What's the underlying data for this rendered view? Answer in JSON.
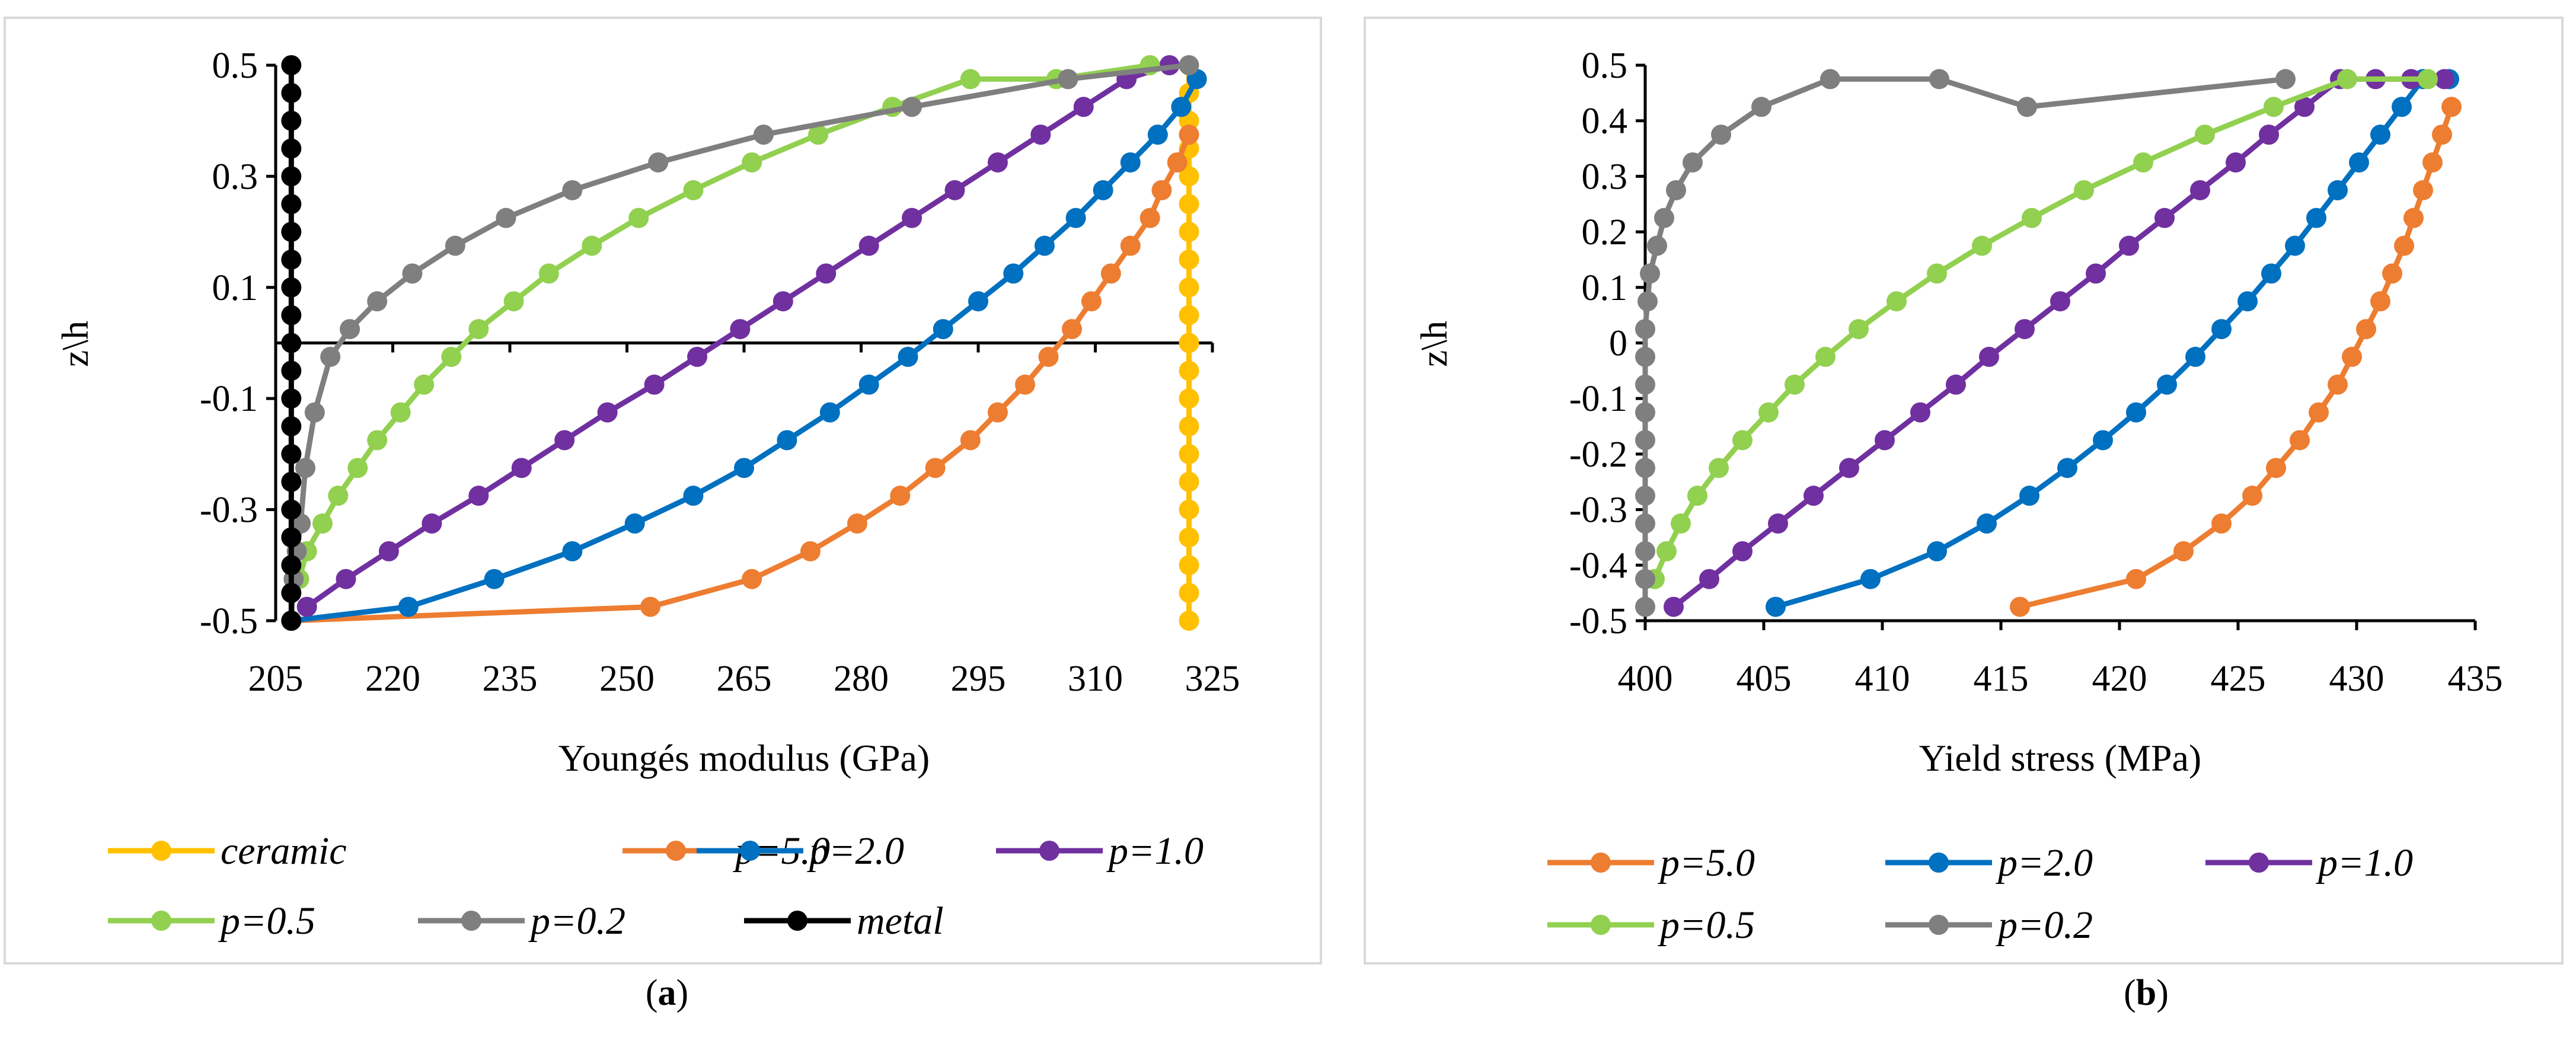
{
  "chart_data": [
    {
      "id": "a",
      "type": "line",
      "caption_label": "a",
      "xlabel": "Youngés modulus (GPa)",
      "ylabel": "z\\h",
      "xlim": [
        205,
        325
      ],
      "ylim": [
        -0.5,
        0.5
      ],
      "x_ticks": [
        205,
        220,
        235,
        250,
        265,
        280,
        295,
        310,
        325
      ],
      "y_ticks": [
        -0.5,
        -0.3,
        -0.1,
        0.1,
        0.3,
        0.5
      ],
      "y_tick_labels": [
        "-0.5",
        "-0.3",
        "-0.1",
        "0.1",
        "0.3",
        "0.5"
      ],
      "x_axis_crosses_y": 0,
      "legend": "bottom",
      "series": [
        {
          "name": "ceramic",
          "color": "#FFC000",
          "x": [
            322,
            322,
            322,
            322,
            322,
            322,
            322,
            322,
            322,
            322,
            322,
            322,
            322,
            322,
            322,
            322,
            322,
            322,
            322,
            322,
            322
          ],
          "y": [
            -0.5,
            -0.45,
            -0.4,
            -0.35,
            -0.3,
            -0.25,
            -0.2,
            -0.15,
            -0.1,
            -0.05,
            0,
            0.05,
            0.1,
            0.15,
            0.2,
            0.25,
            0.3,
            0.35,
            0.4,
            0.45,
            0.5
          ]
        },
        {
          "name": "p=5.0",
          "color": "#ED7D31",
          "x": [
            207,
            253,
            266,
            273.5,
            279.5,
            285,
            289.5,
            294,
            297.5,
            301,
            304,
            307,
            309.5,
            312,
            314.5,
            317,
            318.5,
            320.5,
            322
          ],
          "y": [
            -0.5,
            -0.475,
            -0.425,
            -0.375,
            -0.325,
            -0.275,
            -0.225,
            -0.175,
            -0.125,
            -0.075,
            -0.025,
            0.025,
            0.075,
            0.125,
            0.175,
            0.225,
            0.275,
            0.325,
            0.375
          ]
        },
        {
          "name": "p=2.0",
          "color": "#0070C0",
          "x": [
            207,
            222,
            233,
            243,
            251,
            258.5,
            265,
            270.5,
            276,
            281,
            286,
            290.5,
            295,
            299.5,
            303.5,
            307.5,
            311,
            314.5,
            318,
            321,
            323
          ],
          "y": [
            -0.5,
            -0.475,
            -0.425,
            -0.375,
            -0.325,
            -0.275,
            -0.225,
            -0.175,
            -0.125,
            -0.075,
            -0.025,
            0.025,
            0.075,
            0.125,
            0.175,
            0.225,
            0.275,
            0.325,
            0.375,
            0.425,
            0.475
          ]
        },
        {
          "name": "p=1.0",
          "color": "#7030A0",
          "x": [
            209,
            214,
            219.5,
            225,
            231,
            236.5,
            242,
            247.5,
            253.5,
            259,
            264.5,
            270,
            275.5,
            281,
            286.5,
            292,
            297.5,
            303,
            308.5,
            314,
            319.5
          ],
          "y": [
            -0.475,
            -0.425,
            -0.375,
            -0.325,
            -0.275,
            -0.225,
            -0.175,
            -0.125,
            -0.075,
            -0.025,
            0.025,
            0.075,
            0.125,
            0.175,
            0.225,
            0.275,
            0.325,
            0.375,
            0.425,
            0.475,
            0.5
          ]
        },
        {
          "name": "p=0.5",
          "color": "#92D050",
          "x": [
            208,
            209,
            211,
            213,
            215.5,
            218,
            221,
            224,
            227.5,
            231,
            235.5,
            240,
            245.5,
            251.5,
            258.5,
            266,
            274.5,
            284,
            294,
            305,
            317
          ],
          "y": [
            -0.425,
            -0.375,
            -0.325,
            -0.275,
            -0.225,
            -0.175,
            -0.125,
            -0.075,
            -0.025,
            0.025,
            0.075,
            0.125,
            0.175,
            0.225,
            0.275,
            0.325,
            0.375,
            0.425,
            0.475,
            0.475,
            0.5
          ]
        },
        {
          "name": "p=0.2",
          "color": "#7F7F7F",
          "x": [
            207,
            207.3,
            207.7,
            208.2,
            208.8,
            210,
            212,
            214.5,
            218,
            222.5,
            228,
            234.5,
            243,
            254,
            267.5,
            286.5,
            306.5,
            322
          ],
          "y": [
            -0.5,
            -0.425,
            -0.375,
            -0.325,
            -0.225,
            -0.125,
            -0.025,
            0.025,
            0.075,
            0.125,
            0.175,
            0.225,
            0.275,
            0.325,
            0.375,
            0.425,
            0.475,
            0.5
          ]
        },
        {
          "name": "metal",
          "color": "#000000",
          "x": [
            207,
            207,
            207,
            207,
            207,
            207,
            207,
            207,
            207,
            207,
            207,
            207,
            207,
            207,
            207,
            207,
            207,
            207,
            207,
            207,
            207
          ],
          "y": [
            -0.5,
            -0.45,
            -0.4,
            -0.35,
            -0.3,
            -0.25,
            -0.2,
            -0.15,
            -0.1,
            -0.05,
            0,
            0.05,
            0.1,
            0.15,
            0.2,
            0.25,
            0.3,
            0.35,
            0.4,
            0.45,
            0.5
          ]
        }
      ]
    },
    {
      "id": "b",
      "type": "line",
      "caption_label": "b",
      "xlabel": "Yield stress (MPa)",
      "ylabel": "z\\h",
      "xlim": [
        400,
        435
      ],
      "ylim": [
        -0.5,
        0.5
      ],
      "x_ticks": [
        400,
        405,
        410,
        415,
        420,
        425,
        430,
        435
      ],
      "y_ticks": [
        -0.5,
        -0.4,
        -0.3,
        -0.2,
        -0.1,
        0,
        0.1,
        0.2,
        0.3,
        0.4,
        0.5
      ],
      "y_tick_labels": [
        "-0.5",
        "-0.4",
        "-0.3",
        "-0.2",
        "-0.1",
        "0",
        "0.1",
        "0.2",
        "0.3",
        "0.4",
        "0.5"
      ],
      "x_axis_crosses_y": -0.5,
      "legend": "bottom",
      "series": [
        {
          "name": "p=5.0",
          "color": "#ED7D31",
          "x": [
            415.8,
            420.7,
            422.7,
            424.3,
            425.6,
            426.6,
            427.6,
            428.4,
            429.2,
            429.8,
            430.4,
            431,
            431.5,
            432,
            432.4,
            432.8,
            433.2,
            433.6,
            434
          ],
          "y": [
            -0.475,
            -0.425,
            -0.375,
            -0.325,
            -0.275,
            -0.225,
            -0.175,
            -0.125,
            -0.075,
            -0.025,
            0.025,
            0.075,
            0.125,
            0.175,
            0.225,
            0.275,
            0.325,
            0.375,
            0.425
          ]
        },
        {
          "name": "p=2.0",
          "color": "#0070C0",
          "x": [
            405.5,
            409.5,
            412.3,
            414.4,
            416.2,
            417.8,
            419.3,
            420.7,
            422,
            423.2,
            424.3,
            425.4,
            426.4,
            427.4,
            428.3,
            429.2,
            430.1,
            431,
            431.9,
            432.8,
            433.9
          ],
          "y": [
            -0.475,
            -0.425,
            -0.375,
            -0.325,
            -0.275,
            -0.225,
            -0.175,
            -0.125,
            -0.075,
            -0.025,
            0.025,
            0.075,
            0.125,
            0.175,
            0.225,
            0.275,
            0.325,
            0.375,
            0.425,
            0.475,
            0.475
          ]
        },
        {
          "name": "p=1.0",
          "color": "#7030A0",
          "x": [
            401.2,
            402.7,
            404.1,
            405.6,
            407.1,
            408.6,
            410.1,
            411.6,
            413.1,
            414.5,
            416,
            417.5,
            419,
            420.4,
            421.9,
            423.4,
            424.9,
            426.3,
            427.8,
            429.3,
            430.8,
            432.3,
            433.7
          ],
          "y": [
            -0.475,
            -0.425,
            -0.375,
            -0.325,
            -0.275,
            -0.225,
            -0.175,
            -0.125,
            -0.075,
            -0.025,
            0.025,
            0.075,
            0.125,
            0.175,
            0.225,
            0.275,
            0.325,
            0.375,
            0.425,
            0.475,
            0.475,
            0.475,
            0.475
          ]
        },
        {
          "name": "p=0.5",
          "color": "#92D050",
          "x": [
            400.4,
            400.9,
            401.5,
            402.2,
            403.1,
            404.1,
            405.2,
            406.3,
            407.6,
            409,
            410.6,
            412.3,
            414.2,
            416.3,
            418.5,
            421,
            423.6,
            426.5,
            429.6,
            433
          ],
          "y": [
            -0.425,
            -0.375,
            -0.325,
            -0.275,
            -0.225,
            -0.175,
            -0.125,
            -0.075,
            -0.025,
            0.025,
            0.075,
            0.125,
            0.175,
            0.225,
            0.275,
            0.325,
            0.375,
            0.425,
            0.475,
            0.475
          ]
        },
        {
          "name": "p=0.2",
          "color": "#7F7F7F",
          "x": [
            400,
            400,
            400,
            400,
            400,
            400,
            400,
            400,
            400,
            400,
            400,
            400.1,
            400.2,
            400.5,
            400.8,
            401.3,
            402,
            403.2,
            404.9,
            407.8,
            412.4,
            416.1,
            427
          ],
          "y": [
            -0.475,
            -0.425,
            -0.375,
            -0.325,
            -0.275,
            -0.225,
            -0.175,
            -0.125,
            -0.075,
            -0.025,
            0.025,
            0.075,
            0.125,
            0.175,
            0.225,
            0.275,
            0.325,
            0.375,
            0.425,
            0.475,
            0.475,
            0.425,
            0.475
          ]
        }
      ]
    }
  ]
}
